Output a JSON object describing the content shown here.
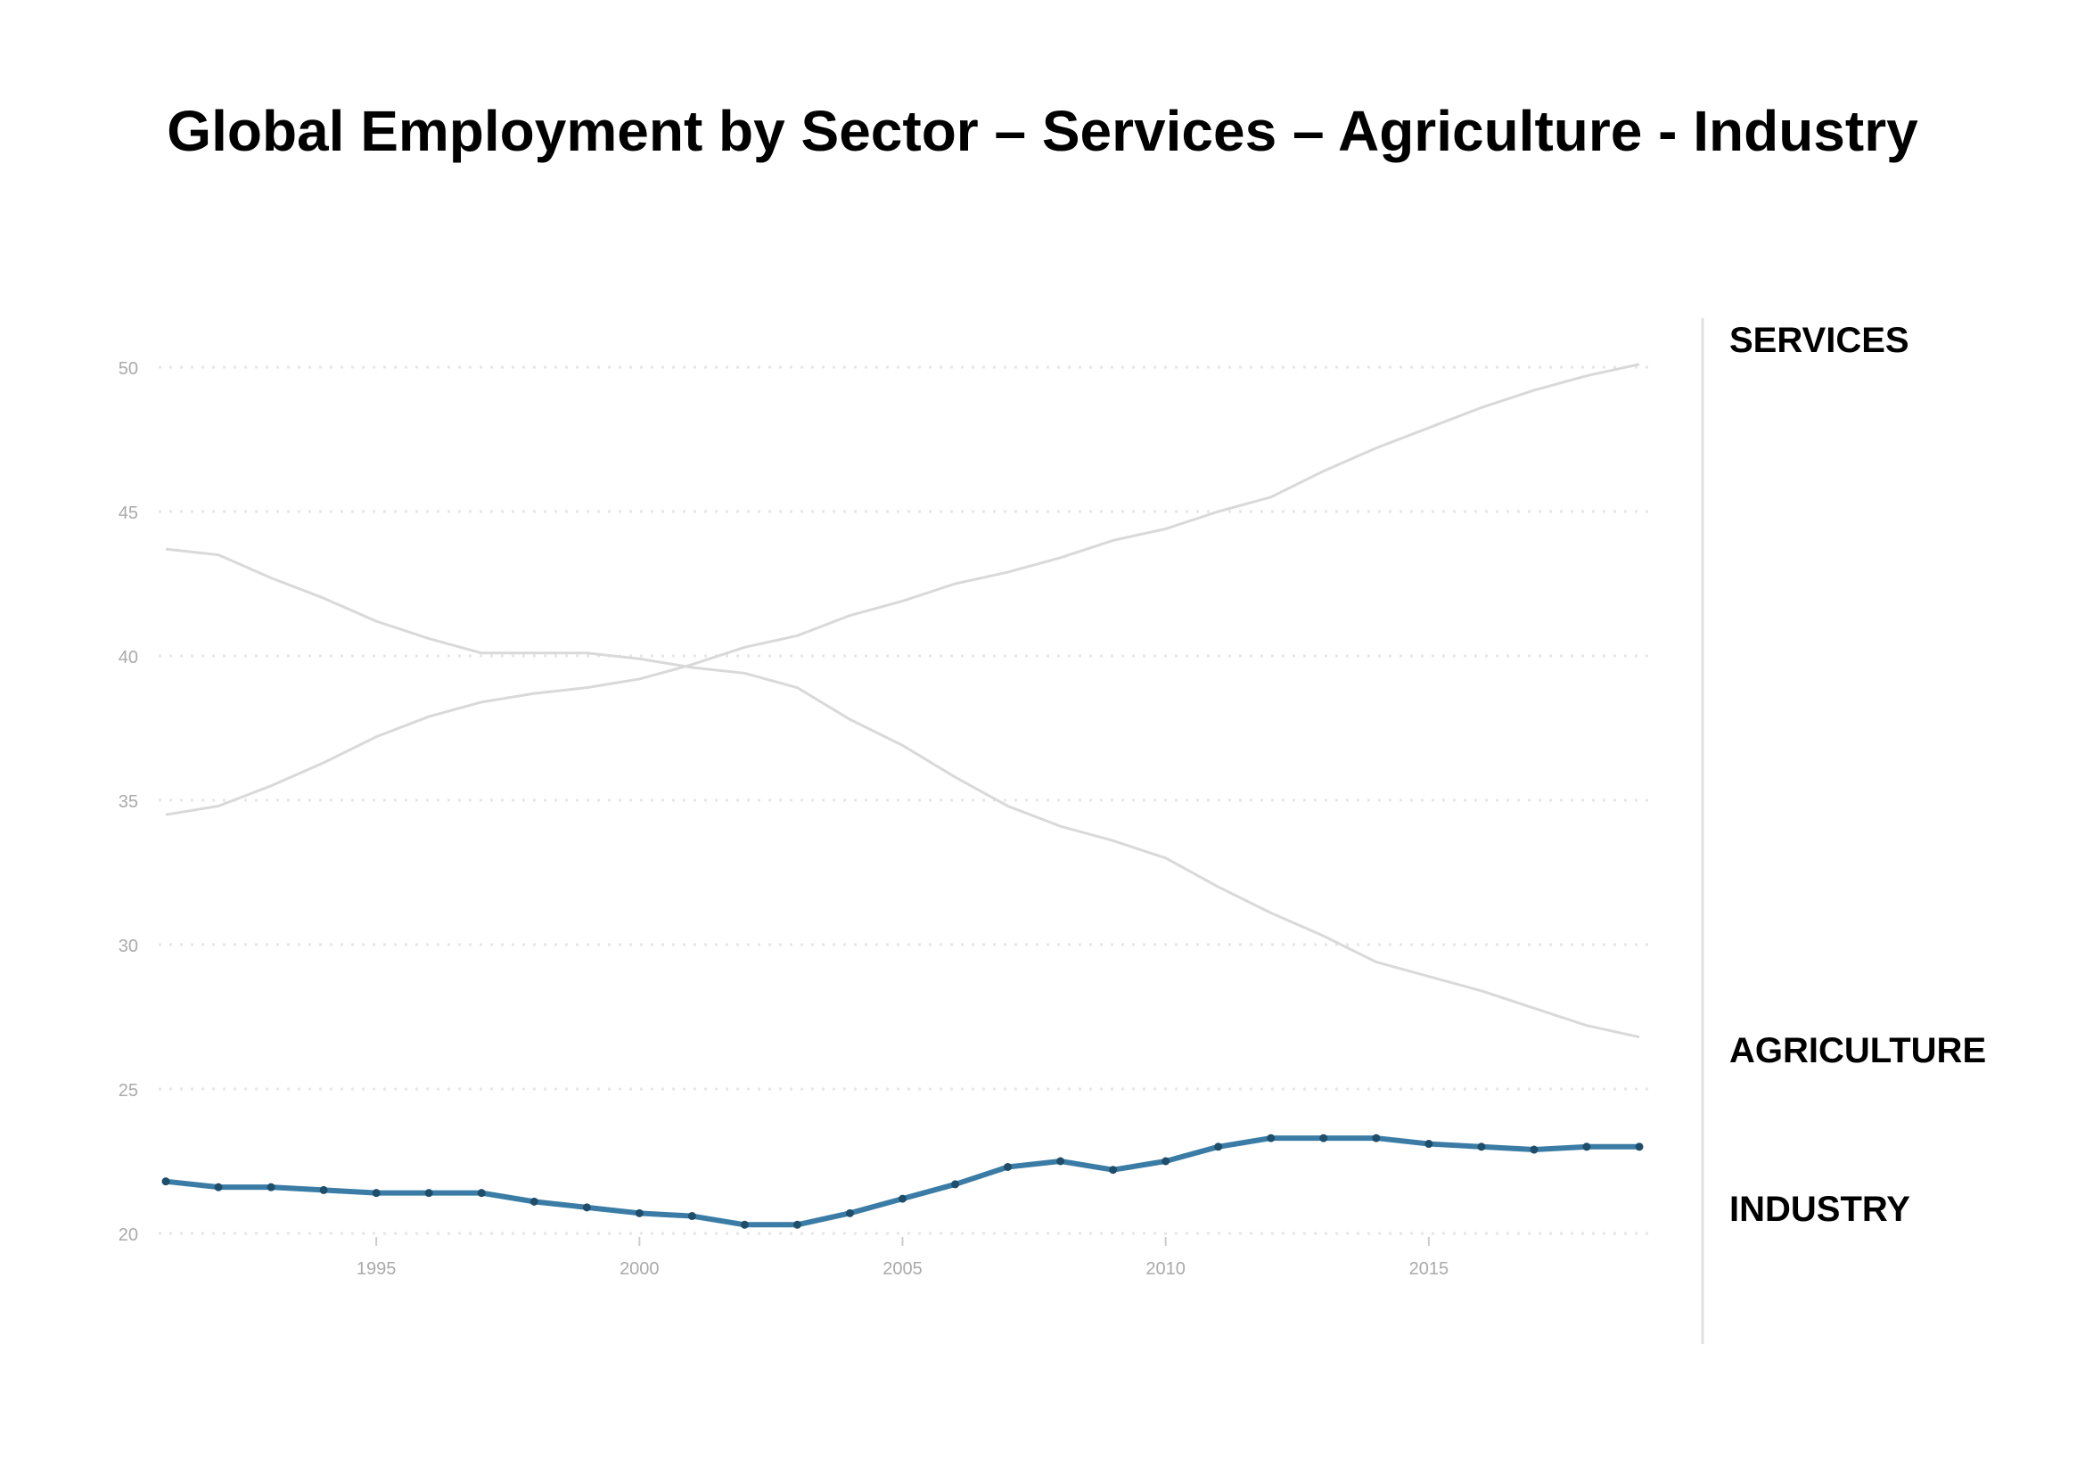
{
  "chart_data": {
    "type": "line",
    "title": "Global Employment by Sector – Services – Agriculture - Industry",
    "x": [
      1991,
      1992,
      1993,
      1994,
      1995,
      1996,
      1997,
      1998,
      1999,
      2000,
      2001,
      2002,
      2003,
      2004,
      2005,
      2006,
      2007,
      2008,
      2009,
      2010,
      2011,
      2012,
      2013,
      2014,
      2015,
      2016,
      2017,
      2018,
      2019
    ],
    "series": [
      {
        "name": "SERVICES",
        "color": "#d9d9d9",
        "values": [
          34.5,
          34.8,
          35.5,
          36.3,
          37.2,
          37.9,
          38.4,
          38.7,
          38.9,
          39.2,
          39.7,
          40.3,
          40.7,
          41.4,
          41.9,
          42.5,
          42.9,
          43.4,
          44.0,
          44.4,
          45.0,
          45.5,
          46.4,
          47.2,
          47.9,
          48.6,
          49.2,
          49.7,
          50.1
        ]
      },
      {
        "name": "AGRICULTURE",
        "color": "#d9d9d9",
        "values": [
          43.7,
          43.5,
          42.7,
          42.0,
          41.2,
          40.6,
          40.1,
          40.1,
          40.1,
          39.9,
          39.6,
          39.4,
          38.9,
          37.8,
          36.9,
          35.8,
          34.8,
          34.1,
          33.6,
          33.0,
          32.0,
          31.1,
          30.3,
          29.4,
          28.9,
          28.4,
          27.8,
          27.2,
          26.8
        ]
      },
      {
        "name": "INDUSTRY",
        "color": "#3a7ca5",
        "values": [
          21.8,
          21.6,
          21.6,
          21.5,
          21.4,
          21.4,
          21.4,
          21.1,
          20.9,
          20.7,
          20.6,
          20.3,
          20.3,
          20.7,
          21.2,
          21.7,
          22.3,
          22.5,
          22.2,
          22.5,
          23.0,
          23.3,
          23.3,
          23.3,
          23.1,
          23.0,
          22.9,
          23.0,
          23.0
        ]
      }
    ],
    "xticks": [
      1995,
      2000,
      2005,
      2010,
      2015
    ],
    "yticks": [
      20,
      25,
      30,
      35,
      40,
      45,
      50
    ],
    "xlim": [
      1991,
      2019
    ],
    "ylim": [
      20,
      50
    ],
    "grid": "horizontal dotted",
    "legend": "right, direct labels"
  }
}
